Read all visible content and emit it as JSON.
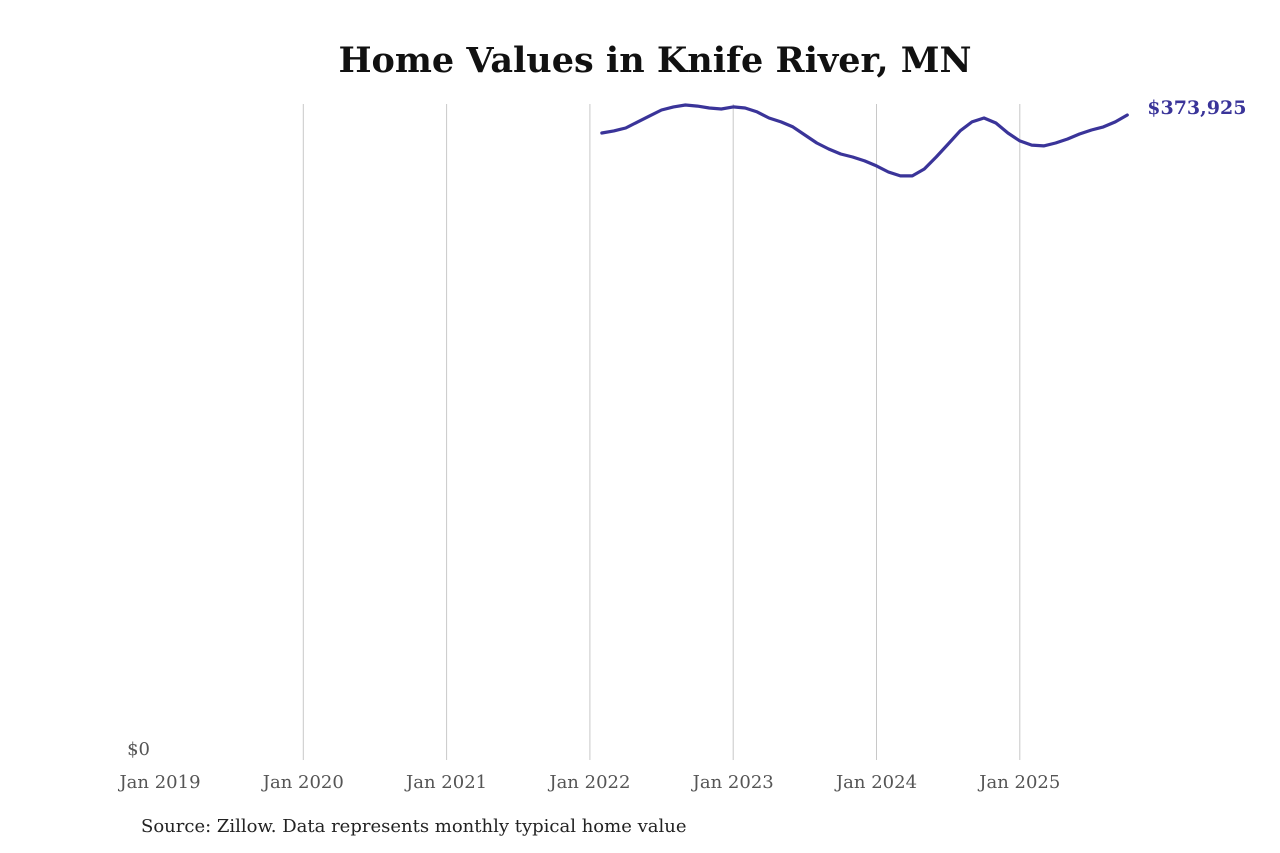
{
  "chart_data": {
    "type": "line",
    "title": "Home Values in Knife River, MN",
    "source": "Source: Zillow. Data represents monthly typical home value",
    "xlabel": "",
    "ylabel": "",
    "x_ticks": [
      "Jan 2019",
      "Jan 2020",
      "Jan 2021",
      "Jan 2022",
      "Jan 2023",
      "Jan 2024",
      "Jan 2025"
    ],
    "y_ticks": [
      "$0"
    ],
    "xlim": [
      "2019-01",
      "2025-10"
    ],
    "ylim": [
      0,
      380300
    ],
    "grid": "vertical",
    "end_label": "$373,925",
    "line_color": "#3a3499",
    "series": [
      {
        "x": [
          "2022-02",
          "2022-03",
          "2022-04",
          "2022-05",
          "2022-06",
          "2022-07",
          "2022-08",
          "2022-09",
          "2022-10",
          "2022-11",
          "2022-12",
          "2023-01",
          "2023-02",
          "2023-03",
          "2023-04",
          "2023-05",
          "2023-06",
          "2023-07",
          "2023-08",
          "2023-09",
          "2023-10",
          "2023-11",
          "2023-12",
          "2024-01",
          "2024-02",
          "2024-03",
          "2024-04",
          "2024-05",
          "2024-06",
          "2024-07",
          "2024-08",
          "2024-09",
          "2024-10",
          "2024-11",
          "2024-12",
          "2025-01",
          "2025-02",
          "2025-03",
          "2025-04",
          "2025-05",
          "2025-06",
          "2025-07",
          "2025-08",
          "2025-09",
          "2025-10"
        ],
        "values": [
          363500,
          364700,
          366400,
          369900,
          373400,
          376800,
          378600,
          379700,
          379100,
          378000,
          377400,
          378600,
          378000,
          375700,
          372200,
          369900,
          367000,
          362300,
          357700,
          354200,
          351300,
          349600,
          347300,
          344400,
          340900,
          338600,
          338600,
          342600,
          349600,
          357100,
          364700,
          369900,
          372200,
          369300,
          363500,
          358900,
          356500,
          356000,
          357700,
          360000,
          362900,
          365200,
          367000,
          369900,
          373925
        ]
      }
    ]
  }
}
